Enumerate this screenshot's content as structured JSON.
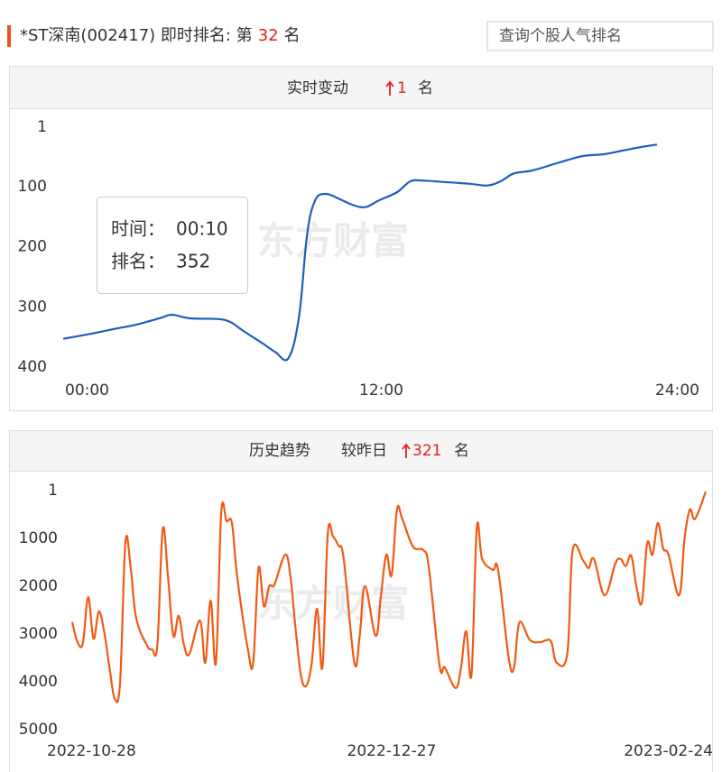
{
  "header": {
    "title": "*ST深南(002417) 即时排名: 第",
    "rank": 32,
    "unit": "名",
    "search_placeholder": "查询个股人气排名"
  },
  "watermark": "东方财富",
  "chart_data": [
    {
      "type": "line",
      "title": "实时变动",
      "change": 1,
      "change_unit": "名",
      "color": "#1f5fbf",
      "y_inverted": true,
      "x": [
        0,
        1.0,
        2.0,
        2.7,
        3.7,
        4.1,
        4.8,
        5.8,
        6.3,
        6.8,
        7.5,
        8.0,
        8.5,
        8.9,
        9.2,
        9.5,
        9.9,
        10.4,
        10.9,
        11.4,
        11.9,
        12.6,
        13.1,
        13.6,
        14.3,
        15.3,
        16.0,
        16.5,
        17.0,
        17.7,
        18.7,
        19.6,
        20.4,
        21.1,
        21.8,
        22.4
      ],
      "values": [
        353,
        345,
        336,
        330,
        318,
        313,
        319,
        320,
        325,
        340,
        360,
        375,
        385,
        315,
        180,
        123,
        112,
        120,
        130,
        134,
        123,
        109,
        91,
        90,
        92,
        95,
        98,
        91,
        78,
        73,
        60,
        49,
        46,
        40,
        34,
        30
      ],
      "xlim": [
        0,
        24
      ],
      "xticks": [
        {
          "value": 0,
          "label": "00:00"
        },
        {
          "value": 12,
          "label": "12:00"
        },
        {
          "value": 24,
          "label": "24:00"
        }
      ],
      "ylim": [
        1,
        400
      ],
      "yticks": [
        1,
        100,
        200,
        300,
        400
      ],
      "tooltip": {
        "time_label": "时间：",
        "time": "00:10",
        "rank_label": "排名：",
        "rank": 352
      }
    },
    {
      "type": "line",
      "title": "历史趋势",
      "change_label": "较昨日",
      "change": 321,
      "change_unit": "名",
      "color": "#f05a14",
      "y_inverted": true,
      "x": [
        "2022-10-28",
        "2022-10-29",
        "2022-10-30",
        "2022-10-31",
        "2022-11-01",
        "2022-11-02",
        "2022-11-03",
        "2022-11-04",
        "2022-11-05",
        "2022-11-06",
        "2022-11-07",
        "2022-11-08",
        "2022-11-09",
        "2022-11-11",
        "2022-11-12",
        "2022-11-13",
        "2022-11-14",
        "2022-11-15",
        "2022-11-16",
        "2022-11-17",
        "2022-11-18",
        "2022-11-19",
        "2022-11-21",
        "2022-11-22",
        "2022-11-23",
        "2022-11-24",
        "2022-11-25",
        "2022-11-26",
        "2022-11-27",
        "2022-11-28",
        "2022-11-30",
        "2022-12-01",
        "2022-12-02",
        "2022-12-03",
        "2022-12-04",
        "2022-12-05",
        "2022-12-07",
        "2022-12-08",
        "2022-12-09",
        "2022-12-10",
        "2022-12-11",
        "2022-12-12",
        "2022-12-13",
        "2022-12-14",
        "2022-12-15",
        "2022-12-16",
        "2022-12-17",
        "2022-12-18",
        "2022-12-20",
        "2022-12-21",
        "2022-12-22",
        "2022-12-24",
        "2022-12-25",
        "2022-12-26",
        "2022-12-27",
        "2022-12-28",
        "2022-12-29",
        "2022-12-31",
        "2023-01-02",
        "2023-01-03",
        "2023-01-05",
        "2023-01-06",
        "2023-01-08",
        "2023-01-09",
        "2023-01-10",
        "2023-01-11",
        "2023-01-12",
        "2023-01-13",
        "2023-01-15",
        "2023-01-16",
        "2023-01-18",
        "2023-01-19",
        "2023-01-20",
        "2023-01-22",
        "2023-01-24",
        "2023-01-25",
        "2023-01-26",
        "2023-01-27",
        "2023-01-29",
        "2023-01-30",
        "2023-02-01",
        "2023-02-02",
        "2023-02-03",
        "2023-02-05",
        "2023-02-07",
        "2023-02-08",
        "2023-02-09",
        "2023-02-10",
        "2023-02-11",
        "2023-02-12",
        "2023-02-13",
        "2023-02-14",
        "2023-02-15",
        "2023-02-16",
        "2023-02-17",
        "2023-02-19",
        "2023-02-20",
        "2023-02-21",
        "2023-02-22",
        "2023-02-24"
      ],
      "values": [
        2750,
        3170,
        3190,
        2230,
        3100,
        2530,
        2950,
        3700,
        4360,
        4000,
        1080,
        1630,
        2660,
        3230,
        3320,
        3230,
        810,
        1810,
        3040,
        2620,
        3230,
        3420,
        2720,
        3600,
        2300,
        3600,
        450,
        640,
        680,
        1810,
        3320,
        3600,
        1620,
        2420,
        2000,
        1960,
        1340,
        1810,
        2940,
        3890,
        4080,
        3600,
        2470,
        3700,
        910,
        960,
        1150,
        1430,
        3600,
        3040,
        2000,
        3040,
        2190,
        1340,
        1770,
        400,
        590,
        1170,
        1250,
        1620,
        3660,
        3700,
        4130,
        3730,
        2940,
        3850,
        780,
        1430,
        1660,
        1660,
        3510,
        3700,
        2760,
        3130,
        3170,
        3130,
        3170,
        3600,
        3400,
        1250,
        1470,
        1620,
        1430,
        2190,
        1530,
        1430,
        1580,
        1360,
        2020,
        2340,
        1100,
        1340,
        680,
        1210,
        1340,
        2190,
        1020,
        400,
        590,
        20
      ],
      "xlim": [
        "2022-10-28",
        "2023-02-24"
      ],
      "xticks": [
        "2022-10-28",
        "2022-12-27",
        "2023-02-24"
      ],
      "ylim": [
        1,
        5000
      ],
      "yticks": [
        1,
        1000,
        2000,
        3000,
        4000,
        5000
      ]
    }
  ]
}
